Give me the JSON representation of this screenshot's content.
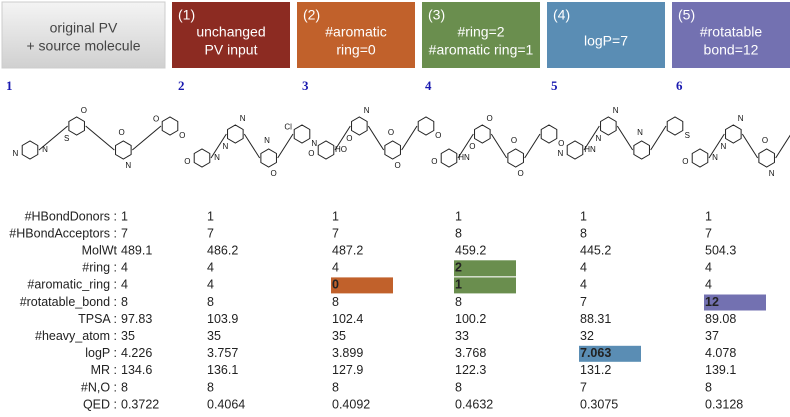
{
  "headers": [
    {
      "number": null,
      "lines": [
        "original PV",
        "+ source molecule"
      ],
      "color": "#e6e6e6"
    },
    {
      "number": "(1)",
      "lines": [
        "unchanged",
        "PV input"
      ],
      "color": "#8c2b22"
    },
    {
      "number": "(2)",
      "lines": [
        "#aromatic",
        "ring=0"
      ],
      "color": "#c1612b"
    },
    {
      "number": "(3)",
      "lines": [
        "#ring=2",
        "#aromatic ring=1"
      ],
      "color": "#6a8e4e"
    },
    {
      "number": "(4)",
      "lines": [
        "logP=7"
      ],
      "color": "#5a8db4"
    },
    {
      "number": "(5)",
      "lines": [
        "#rotatable",
        "bond=12"
      ],
      "color": "#7371b1"
    }
  ],
  "molecules": [
    {
      "id": "1",
      "atoms": [
        "N",
        "S",
        "O",
        "O",
        "N",
        "O",
        "N",
        "O"
      ]
    },
    {
      "id": "2",
      "atoms": [
        "N",
        "N",
        "N",
        "N",
        "O",
        "N",
        "O",
        "Cl"
      ]
    },
    {
      "id": "3",
      "atoms": [
        "HO",
        "O",
        "O",
        "O",
        "O",
        "N",
        "O"
      ]
    },
    {
      "id": "4",
      "atoms": [
        "HN",
        "O",
        "O",
        "O",
        "O",
        "O",
        "O"
      ]
    },
    {
      "id": "5",
      "atoms": [
        "HN",
        "N",
        "N",
        "S",
        "N",
        "N"
      ]
    },
    {
      "id": "6",
      "atoms": [
        "N",
        "N",
        "O",
        "F",
        "O",
        "N",
        "N"
      ]
    }
  ],
  "table": {
    "row_labels": [
      "#HBondDonors :",
      "#HBondAcceptors :",
      "MolWt",
      "#ring :",
      "#aromatic_ring :",
      "#rotatable_bond :",
      "TPSA :",
      "#heavy_atom :",
      "logP :",
      "MR :",
      "#N,O :",
      "QED :"
    ],
    "rows": [
      [
        1,
        1,
        1,
        1,
        1,
        1
      ],
      [
        7,
        7,
        7,
        8,
        8,
        7
      ],
      [
        489.1,
        486.2,
        487.2,
        459.2,
        445.2,
        504.3
      ],
      [
        4,
        4,
        4,
        2,
        4,
        4
      ],
      [
        4,
        4,
        0,
        1,
        4,
        4
      ],
      [
        8,
        8,
        8,
        8,
        7,
        12
      ],
      [
        97.83,
        103.9,
        102.4,
        100.2,
        88.31,
        89.08
      ],
      [
        35,
        35,
        35,
        33,
        32,
        37
      ],
      [
        4.226,
        3.757,
        3.899,
        3.768,
        7.063,
        4.078
      ],
      [
        134.6,
        136.1,
        127.9,
        122.3,
        131.2,
        139.1
      ],
      [
        8,
        8,
        8,
        8,
        7,
        8
      ],
      [
        0.3722,
        0.4064,
        0.4092,
        0.4632,
        0.3075,
        0.3128
      ]
    ],
    "highlights": [
      {
        "row": 4,
        "col": 2
      },
      {
        "row": 3,
        "col": 3
      },
      {
        "row": 4,
        "col": 3
      },
      {
        "row": 8,
        "col": 4
      },
      {
        "row": 5,
        "col": 5
      }
    ]
  }
}
